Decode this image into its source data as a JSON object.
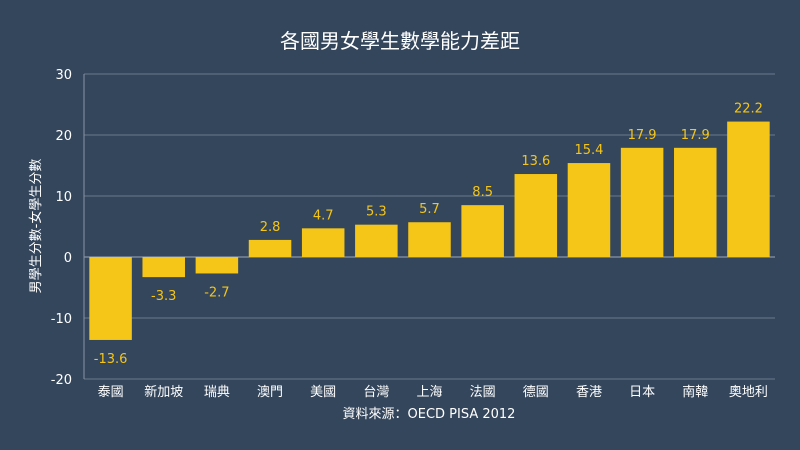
{
  "chart_data": {
    "type": "bar",
    "title": "各國男女學生數學能力差距",
    "ylabel": "男學生分數-女學生分數",
    "xlabel": "",
    "source": "資料來源：OECD PISA 2012",
    "categories": [
      "泰國",
      "新加坡",
      "瑞典",
      "澳門",
      "美國",
      "台灣",
      "上海",
      "法國",
      "德國",
      "香港",
      "日本",
      "南韓",
      "奧地利"
    ],
    "values": [
      -13.6,
      -3.3,
      -2.7,
      2.8,
      4.7,
      5.3,
      5.7,
      8.5,
      13.6,
      15.4,
      17.9,
      17.9,
      22.2
    ],
    "ylim": [
      -20,
      30
    ],
    "yticks": [
      -20,
      -10,
      0,
      10,
      20,
      30
    ],
    "grid": true,
    "colors": {
      "bar": "#f5c518",
      "background": "#34465c",
      "text": "#ffffff",
      "label": "#f5c518"
    }
  }
}
